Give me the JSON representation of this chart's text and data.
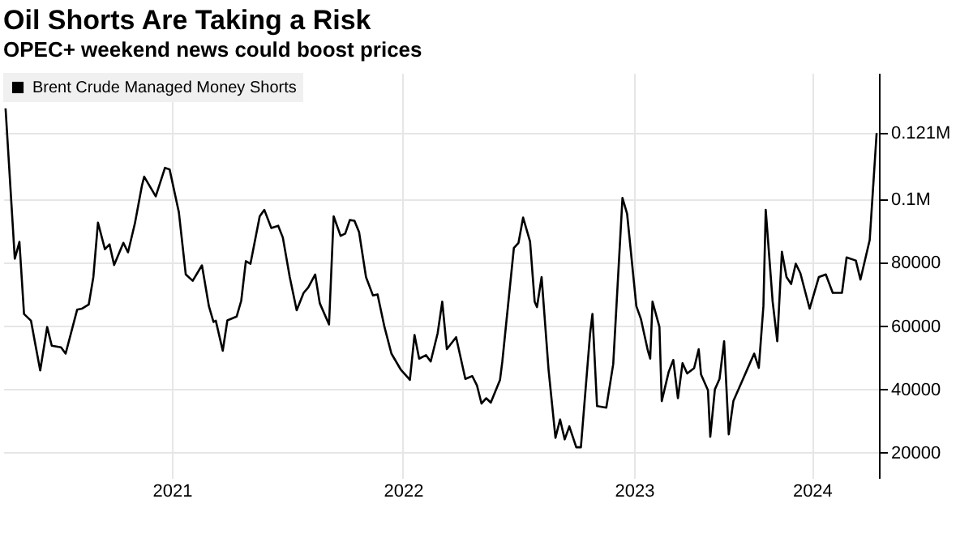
{
  "chart_data": {
    "type": "line",
    "title": "Oil Shorts Are Taking a Risk",
    "subtitle": "OPEC+ weekend news could boost prices",
    "x": [
      2020.78,
      2020.82,
      2020.84,
      2020.86,
      2020.89,
      2020.91,
      2020.93,
      2020.96,
      2020.98,
      2021.02,
      2021.04,
      2021.09,
      2021.11,
      2021.14,
      2021.16,
      2021.18,
      2021.21,
      2021.23,
      2021.25,
      2021.29,
      2021.31,
      2021.34,
      2021.37,
      2021.38,
      2021.43,
      2021.47,
      2021.49,
      2021.53,
      2021.56,
      2021.59,
      2021.63,
      2021.66,
      2021.68,
      2021.69,
      2021.72,
      2021.74,
      2021.78,
      2021.8,
      2021.82,
      2021.84,
      2021.88,
      2021.9,
      2021.93,
      2021.96,
      2021.98,
      2022.01,
      2022.04,
      2022.07,
      2022.09,
      2022.12,
      2022.14,
      2022.18,
      2022.2,
      2022.23,
      2022.25,
      2022.27,
      2022.29,
      2022.31,
      2022.34,
      2022.37,
      2022.39,
      2022.42,
      2022.45,
      2022.49,
      2022.53,
      2022.55,
      2022.57,
      2022.6,
      2022.62,
      2022.65,
      2022.67,
      2022.69,
      2022.73,
      2022.77,
      2022.8,
      2022.82,
      2022.84,
      2022.86,
      2022.88,
      2022.92,
      2022.93,
      2022.98,
      2023.0,
      2023.02,
      2023.05,
      2023.07,
      2023.08,
      2023.1,
      2023.13,
      2023.16,
      2023.18,
      2023.2,
      2023.22,
      2023.25,
      2023.27,
      2023.31,
      2023.32,
      2023.34,
      2023.38,
      2023.41,
      2023.45,
      2023.47,
      2023.51,
      2023.53,
      2023.56,
      2023.57,
      2023.58,
      2023.61,
      2023.62,
      2023.65,
      2023.67,
      2023.69,
      2023.71,
      2023.73,
      2023.76,
      2023.78,
      2023.79,
      2023.82,
      2023.83,
      2023.85,
      2023.87,
      2023.89,
      2023.91,
      2023.93,
      2023.97,
      2024.0,
      2024.02,
      2024.04,
      2024.06,
      2024.07,
      2024.1,
      2024.12,
      2024.14,
      2024.16,
      2024.18,
      2024.2,
      2024.22,
      2024.26,
      2024.3,
      2024.33,
      2024.36,
      2024.4,
      2024.42,
      2024.46,
      2024.48,
      2024.52,
      2024.55
    ],
    "series": [
      {
        "name": "Brent Crude Managed Money Shorts",
        "color": "#000000",
        "values": [
          128800,
          81300,
          86600,
          63800,
          61700,
          53800,
          46000,
          59700,
          53800,
          53300,
          51300,
          65200,
          65500,
          66800,
          75500,
          92700,
          84300,
          85800,
          79300,
          86300,
          83300,
          92500,
          104300,
          107200,
          101000,
          110000,
          109500,
          96000,
          76300,
          74300,
          79200,
          66300,
          61300,
          61700,
          52200,
          61800,
          63000,
          68000,
          80500,
          79700,
          94700,
          96700,
          91000,
          91700,
          88000,
          75500,
          65000,
          70500,
          72200,
          76300,
          67200,
          60500,
          94700,
          88500,
          89200,
          93500,
          93300,
          89700,
          75500,
          69700,
          70000,
          59700,
          51300,
          46300,
          43000,
          57200,
          49700,
          50800,
          48800,
          57700,
          67700,
          52700,
          56500,
          43300,
          44200,
          41300,
          35500,
          37200,
          35800,
          43000,
          48800,
          84700,
          86300,
          94300,
          86700,
          67700,
          66000,
          75500,
          46300,
          24700,
          30500,
          24200,
          28300,
          21700,
          21700,
          57700,
          63800,
          34700,
          34200,
          48000,
          100500,
          95500,
          66300,
          62200,
          52200,
          49700,
          67700,
          59700,
          36300,
          45500,
          49300,
          37200,
          48300,
          45000,
          46700,
          52700,
          44700,
          39700,
          25000,
          40000,
          43300,
          55200,
          25800,
          36300,
          43000,
          48000,
          51300,
          46800,
          66300,
          96700,
          67700,
          55200,
          83500,
          75500,
          73300,
          79700,
          76700,
          65500,
          75500,
          76300,
          70500,
          70500,
          81700,
          80700,
          74700,
          87200,
          121000
        ]
      }
    ],
    "xlim": [
      2020.77,
      2024.56
    ],
    "xticks": [
      {
        "value": 2021.5,
        "label": "2021"
      },
      {
        "value": 2022.5,
        "label": "2022"
      },
      {
        "value": 2023.5,
        "label": "2023"
      },
      {
        "value": 2024.27,
        "label": "2024"
      }
    ],
    "ylim": [
      12000,
      140000
    ],
    "yticks": [
      20000,
      40000,
      60000,
      80000,
      {
        "value": 100000,
        "label": "0.1M"
      },
      {
        "value": 121000,
        "label": "0.121M"
      }
    ],
    "grid": true,
    "legend": "top left"
  }
}
